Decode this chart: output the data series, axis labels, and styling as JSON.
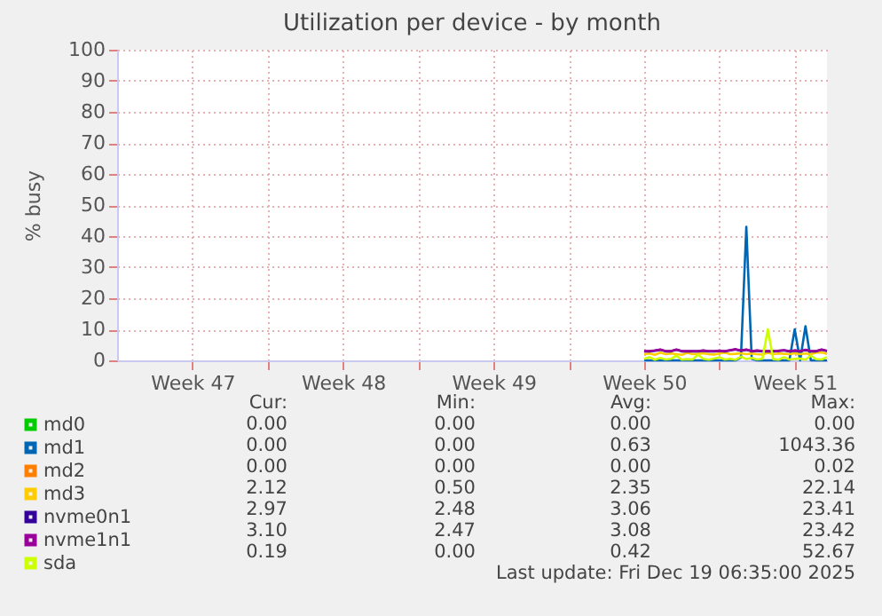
{
  "chart_data": {
    "type": "line",
    "title": "Utilization per device - by month",
    "ylabel": "% busy",
    "x": [
      "2025-12-11T12:00",
      "2025-12-11T18:00",
      "2025-12-12T00:00",
      "2025-12-12T06:00",
      "2025-12-12T12:00",
      "2025-12-12T18:00",
      "2025-12-13T00:00",
      "2025-12-13T06:00",
      "2025-12-13T12:00",
      "2025-12-13T18:00",
      "2025-12-14T00:00",
      "2025-12-14T06:00",
      "2025-12-14T12:00",
      "2025-12-14T18:00",
      "2025-12-15T00:00",
      "2025-12-15T06:00",
      "2025-12-15T12:00",
      "2025-12-15T18:00",
      "2025-12-16T00:00",
      "2025-12-16T06:00",
      "2025-12-16T12:00",
      "2025-12-16T18:00",
      "2025-12-17T00:00",
      "2025-12-17T06:00",
      "2025-12-17T12:00",
      "2025-12-17T18:00",
      "2025-12-18T00:00",
      "2025-12-18T06:00",
      "2025-12-18T12:00",
      "2025-12-18T18:00",
      "2025-12-19T00:00",
      "2025-12-19T06:00",
      "2025-12-19T12:00",
      "2025-12-19T18:00",
      "2025-12-20T00:00"
    ],
    "xlim": [
      "2025-11-17",
      "2025-12-20"
    ],
    "xticks": [
      {
        "value": "2025-11-20T12:00",
        "label": "Week 47"
      },
      {
        "value": "2025-11-24",
        "label": null
      },
      {
        "value": "2025-11-27T12:00",
        "label": "Week 48"
      },
      {
        "value": "2025-12-01",
        "label": null
      },
      {
        "value": "2025-12-04T12:00",
        "label": "Week 49"
      },
      {
        "value": "2025-12-08",
        "label": null
      },
      {
        "value": "2025-12-11T12:00",
        "label": "Week 50"
      },
      {
        "value": "2025-12-15",
        "label": null
      },
      {
        "value": "2025-12-18T12:00",
        "label": "Week 51"
      }
    ],
    "ylim": [
      0,
      100
    ],
    "yticks": [
      0,
      10,
      20,
      30,
      40,
      50,
      60,
      70,
      80,
      90,
      100
    ],
    "grid": true,
    "legend": "bottom",
    "series": [
      {
        "name": "md0",
        "color": "#00cc00",
        "values": [
          null,
          null,
          null,
          null,
          null,
          null,
          null,
          null,
          null,
          null,
          null,
          null,
          null,
          null,
          null,
          null,
          null,
          null,
          null,
          null,
          null,
          null,
          null,
          null,
          null,
          null,
          null,
          null,
          null,
          null,
          null,
          null,
          null,
          null,
          null
        ]
      },
      {
        "name": "md1",
        "color": "#0066b3",
        "values": [
          0,
          0,
          0,
          0,
          0,
          0,
          0,
          0,
          0,
          0,
          0,
          0,
          0,
          0,
          0,
          0,
          0,
          0,
          1,
          43,
          0.5,
          0,
          0,
          0,
          0,
          0,
          0,
          0,
          10,
          0,
          11,
          0,
          0,
          0,
          0
        ]
      },
      {
        "name": "md2",
        "color": "#ff8000",
        "values": [
          null,
          null,
          null,
          null,
          null,
          null,
          null,
          null,
          null,
          null,
          null,
          null,
          null,
          null,
          null,
          null,
          null,
          null,
          null,
          null,
          null,
          null,
          null,
          null,
          null,
          null,
          null,
          null,
          null,
          null,
          null,
          null,
          null,
          null,
          null
        ]
      },
      {
        "name": "md3",
        "color": "#ffcc00",
        "values": [
          2.0,
          2.2,
          1.8,
          2.5,
          2.0,
          2.2,
          2.0,
          1.8,
          2.4,
          2.0,
          2.1,
          2.3,
          2.0,
          1.9,
          2.2,
          2.5,
          2.0,
          2.1,
          2.3,
          2.0,
          2.2,
          2.0,
          1.9,
          2.4,
          2.0,
          2.2,
          2.1,
          2.0,
          2.3,
          2.0,
          2.2,
          2.0,
          2.5,
          2.6,
          2.1
        ]
      },
      {
        "name": "nvme0n1",
        "color": "#330099",
        "values": [
          2.9,
          2.9,
          3.1,
          3.4,
          2.9,
          2.9,
          3.4,
          2.9,
          2.9,
          2.9,
          2.9,
          3.1,
          2.9,
          2.9,
          3.0,
          2.9,
          3.2,
          3.5,
          3.1,
          3.4,
          2.9,
          3.1,
          2.9,
          2.9,
          2.9,
          3.0,
          3.2,
          2.9,
          3.1,
          2.9,
          3.3,
          2.9,
          2.9,
          3.4,
          3.0
        ]
      },
      {
        "name": "nvme1n1",
        "color": "#990099",
        "values": [
          3.0,
          3.0,
          3.2,
          3.5,
          3.0,
          3.0,
          3.5,
          3.0,
          3.0,
          3.0,
          3.0,
          3.2,
          3.0,
          3.0,
          3.1,
          3.0,
          3.3,
          3.6,
          3.2,
          3.5,
          3.0,
          3.2,
          3.0,
          3.0,
          3.0,
          3.1,
          3.3,
          3.0,
          3.2,
          3.0,
          3.4,
          3.0,
          3.0,
          3.5,
          3.1
        ]
      },
      {
        "name": "sda",
        "color": "#ccff00",
        "values": [
          0.5,
          1.0,
          0.2,
          0.8,
          0.3,
          0.5,
          1.5,
          0.2,
          0.4,
          0.3,
          1.8,
          0.5,
          0.2,
          0.6,
          1.0,
          0.3,
          0.5,
          0.2,
          1.2,
          0.4,
          0.8,
          0.3,
          0.5,
          10.0,
          0.4,
          0.2,
          1.0,
          0.3,
          0.5,
          0.6,
          0.2,
          1.5,
          0.4,
          0.3,
          1.0
        ]
      }
    ],
    "annotations": [
      "Cur:",
      "Min:",
      "Avg:",
      "Max:",
      "0.00",
      "0.00",
      "0.00",
      "0.00",
      "0.00",
      "0.00",
      "0.63",
      "1043.36",
      "0.00",
      "0.00",
      "0.00",
      "0.02",
      "2.12",
      "0.50",
      "2.35",
      "22.14",
      "2.97",
      "2.48",
      "3.06",
      "23.41",
      "3.10",
      "2.47",
      "3.08",
      "23.42",
      "0.19",
      "0.00",
      "0.42",
      "52.67",
      "Last update: Fri Dec 19 06:35:00 2025"
    ]
  }
}
